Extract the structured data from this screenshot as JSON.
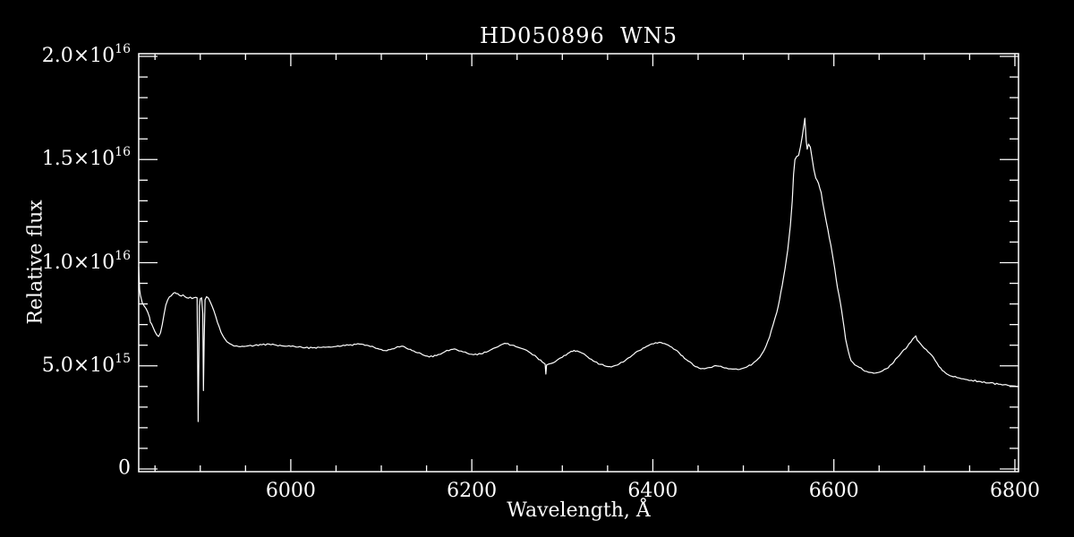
{
  "colors": {
    "background": "#000000",
    "foreground": "#ffffff"
  },
  "chart_data": {
    "type": "line",
    "title": "HD050896  WN5",
    "xlabel": "Wavelength, Å",
    "ylabel": "Relative flux",
    "grid": false,
    "legend": null,
    "xlim": [
      5832,
      6804
    ],
    "ylim": [
      0,
      20
    ],
    "flux_unit": "1e15",
    "x_major_ticks": [
      6000,
      6200,
      6400,
      6600,
      6800
    ],
    "x_tick_labels": [
      "6000",
      "6200",
      "6400",
      "6600",
      "6800"
    ],
    "x_minor_tick_step": 50,
    "y_major_ticks": [
      0,
      5,
      10,
      15,
      20
    ],
    "y_tick_labels": [
      "0",
      "5.0×10^15",
      "1.0×10^16",
      "1.5×10^16",
      "2.0×10^16"
    ],
    "y_minor_tick_step": 1,
    "series": [
      {
        "name": "flux",
        "points": [
          [
            5832,
            9.8
          ],
          [
            5833,
            8.7
          ],
          [
            5834,
            8.4
          ],
          [
            5836,
            8.05
          ],
          [
            5838,
            7.9
          ],
          [
            5840,
            7.78
          ],
          [
            5842,
            7.6
          ],
          [
            5844,
            7.35
          ],
          [
            5845,
            7.1
          ],
          [
            5846,
            7.05
          ],
          [
            5848,
            6.85
          ],
          [
            5850,
            6.65
          ],
          [
            5852,
            6.5
          ],
          [
            5854,
            6.42
          ],
          [
            5856,
            6.6
          ],
          [
            5858,
            7.0
          ],
          [
            5860,
            7.5
          ],
          [
            5862,
            7.95
          ],
          [
            5864,
            8.2
          ],
          [
            5866,
            8.35
          ],
          [
            5869,
            8.45
          ],
          [
            5872,
            8.55
          ],
          [
            5875,
            8.5
          ],
          [
            5877,
            8.42
          ],
          [
            5879,
            8.38
          ],
          [
            5881,
            8.44
          ],
          [
            5883,
            8.35
          ],
          [
            5885,
            8.3
          ],
          [
            5887,
            8.28
          ],
          [
            5889,
            8.33
          ],
          [
            5891,
            8.26
          ],
          [
            5893,
            8.3
          ],
          [
            5895,
            8.32
          ],
          [
            5896.5,
            8.3
          ],
          [
            5897.1,
            5.5
          ],
          [
            5897.7,
            2.3
          ],
          [
            5898.3,
            5.0
          ],
          [
            5899,
            7.9
          ],
          [
            5900,
            8.25
          ],
          [
            5901.5,
            8.3
          ],
          [
            5902.8,
            7.5
          ],
          [
            5903.5,
            3.8
          ],
          [
            5904.3,
            6.2
          ],
          [
            5905.3,
            8.2
          ],
          [
            5907,
            8.35
          ],
          [
            5909,
            8.28
          ],
          [
            5911,
            8.1
          ],
          [
            5913,
            7.9
          ],
          [
            5915,
            7.68
          ],
          [
            5917,
            7.4
          ],
          [
            5919,
            7.1
          ],
          [
            5921,
            6.88
          ],
          [
            5923,
            6.62
          ],
          [
            5925,
            6.45
          ],
          [
            5928,
            6.25
          ],
          [
            5931,
            6.12
          ],
          [
            5935,
            6.02
          ],
          [
            5940,
            5.97
          ],
          [
            5946,
            5.95
          ],
          [
            5953,
            5.97
          ],
          [
            5960,
            5.99
          ],
          [
            5968,
            6.02
          ],
          [
            5976,
            6.05
          ],
          [
            5984,
            6.0
          ],
          [
            5992,
            5.96
          ],
          [
            6000,
            5.94
          ],
          [
            6008,
            5.91
          ],
          [
            6016,
            5.88
          ],
          [
            6024,
            5.87
          ],
          [
            6032,
            5.89
          ],
          [
            6040,
            5.91
          ],
          [
            6048,
            5.93
          ],
          [
            6056,
            5.96
          ],
          [
            6064,
            6.0
          ],
          [
            6072,
            6.04
          ],
          [
            6078,
            6.05
          ],
          [
            6084,
            6.0
          ],
          [
            6092,
            5.9
          ],
          [
            6100,
            5.79
          ],
          [
            6106,
            5.73
          ],
          [
            6112,
            5.82
          ],
          [
            6118,
            5.93
          ],
          [
            6122,
            5.95
          ],
          [
            6128,
            5.85
          ],
          [
            6136,
            5.72
          ],
          [
            6144,
            5.59
          ],
          [
            6151,
            5.47
          ],
          [
            6157,
            5.44
          ],
          [
            6163,
            5.55
          ],
          [
            6170,
            5.68
          ],
          [
            6177,
            5.79
          ],
          [
            6182,
            5.81
          ],
          [
            6188,
            5.72
          ],
          [
            6195,
            5.61
          ],
          [
            6202,
            5.54
          ],
          [
            6210,
            5.58
          ],
          [
            6218,
            5.7
          ],
          [
            6226,
            5.88
          ],
          [
            6233,
            6.03
          ],
          [
            6238,
            6.08
          ],
          [
            6244,
            6.0
          ],
          [
            6251,
            5.9
          ],
          [
            6258,
            5.8
          ],
          [
            6265,
            5.62
          ],
          [
            6272,
            5.4
          ],
          [
            6278,
            5.18
          ],
          [
            6281,
            5.08
          ],
          [
            6281.8,
            4.6
          ],
          [
            6282.6,
            5.04
          ],
          [
            6288,
            5.12
          ],
          [
            6295,
            5.3
          ],
          [
            6302,
            5.5
          ],
          [
            6308,
            5.65
          ],
          [
            6313,
            5.75
          ],
          [
            6318,
            5.69
          ],
          [
            6326,
            5.5
          ],
          [
            6334,
            5.24
          ],
          [
            6342,
            5.07
          ],
          [
            6349,
            4.97
          ],
          [
            6354,
            4.94
          ],
          [
            6361,
            5.04
          ],
          [
            6369,
            5.24
          ],
          [
            6377,
            5.5
          ],
          [
            6385,
            5.74
          ],
          [
            6393,
            5.94
          ],
          [
            6401,
            6.07
          ],
          [
            6407,
            6.14
          ],
          [
            6413,
            6.08
          ],
          [
            6421,
            5.9
          ],
          [
            6429,
            5.63
          ],
          [
            6437,
            5.3
          ],
          [
            6445,
            5.02
          ],
          [
            6451,
            4.89
          ],
          [
            6457,
            4.86
          ],
          [
            6463,
            4.92
          ],
          [
            6469,
            5.01
          ],
          [
            6475,
            4.98
          ],
          [
            6481,
            4.9
          ],
          [
            6488,
            4.84
          ],
          [
            6494,
            4.82
          ],
          [
            6500,
            4.89
          ],
          [
            6505,
            4.98
          ],
          [
            6510,
            5.09
          ],
          [
            6515,
            5.28
          ],
          [
            6520,
            5.55
          ],
          [
            6525,
            5.95
          ],
          [
            6529,
            6.4
          ],
          [
            6533,
            7.0
          ],
          [
            6537,
            7.6
          ],
          [
            6540,
            8.2
          ],
          [
            6543,
            8.9
          ],
          [
            6546,
            9.7
          ],
          [
            6549,
            10.6
          ],
          [
            6552,
            11.8
          ],
          [
            6554,
            13.0
          ],
          [
            6555.5,
            14.3
          ],
          [
            6557,
            15.0
          ],
          [
            6559,
            15.15
          ],
          [
            6561,
            15.2
          ],
          [
            6563,
            15.6
          ],
          [
            6565,
            16.1
          ],
          [
            6567,
            16.7
          ],
          [
            6568,
            17.0
          ],
          [
            6569.5,
            15.9
          ],
          [
            6570.5,
            15.5
          ],
          [
            6572,
            15.75
          ],
          [
            6574,
            15.6
          ],
          [
            6576,
            15.05
          ],
          [
            6578,
            14.5
          ],
          [
            6580,
            14.1
          ],
          [
            6583,
            13.85
          ],
          [
            6586,
            13.4
          ],
          [
            6589,
            12.6
          ],
          [
            6592,
            11.9
          ],
          [
            6595,
            11.2
          ],
          [
            6598,
            10.5
          ],
          [
            6601,
            9.7
          ],
          [
            6604,
            8.8
          ],
          [
            6607,
            8.1
          ],
          [
            6610,
            7.25
          ],
          [
            6613,
            6.3
          ],
          [
            6616,
            5.7
          ],
          [
            6619,
            5.25
          ],
          [
            6623,
            5.05
          ],
          [
            6628,
            4.93
          ],
          [
            6634,
            4.74
          ],
          [
            6640,
            4.68
          ],
          [
            6646,
            4.65
          ],
          [
            6652,
            4.72
          ],
          [
            6658,
            4.86
          ],
          [
            6664,
            5.08
          ],
          [
            6670,
            5.4
          ],
          [
            6676,
            5.72
          ],
          [
            6681,
            5.92
          ],
          [
            6685,
            6.15
          ],
          [
            6689,
            6.38
          ],
          [
            6690.5,
            6.45
          ],
          [
            6692,
            6.25
          ],
          [
            6696,
            6.05
          ],
          [
            6700,
            5.85
          ],
          [
            6704,
            5.68
          ],
          [
            6708,
            5.52
          ],
          [
            6712,
            5.25
          ],
          [
            6716,
            4.97
          ],
          [
            6720,
            4.77
          ],
          [
            6725,
            4.6
          ],
          [
            6730,
            4.5
          ],
          [
            6736,
            4.43
          ],
          [
            6743,
            4.37
          ],
          [
            6752,
            4.3
          ],
          [
            6762,
            4.24
          ],
          [
            6772,
            4.17
          ],
          [
            6782,
            4.11
          ],
          [
            6792,
            4.06
          ],
          [
            6800,
            4.02
          ],
          [
            6804,
            4.0
          ]
        ]
      }
    ]
  }
}
